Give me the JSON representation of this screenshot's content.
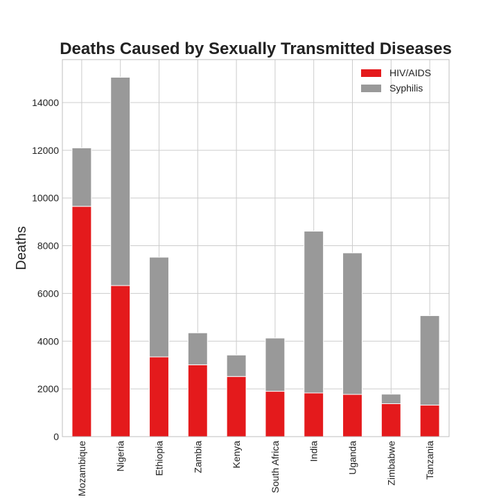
{
  "chart_data": {
    "type": "bar",
    "stacked": true,
    "title": "Deaths Caused by Sexually Transmitted Diseases",
    "xlabel": "",
    "ylabel": "Deaths",
    "categories": [
      "Mozambique",
      "Nigeria",
      "Ethiopia",
      "Zambia",
      "Kenya",
      "South Africa",
      "India",
      "Uganda",
      "Zimbabwe",
      "Tanzania"
    ],
    "series": [
      {
        "name": "HIV/AIDS",
        "color": "#e41a1c",
        "values": [
          9650,
          6330,
          3340,
          3010,
          2520,
          1900,
          1830,
          1770,
          1380,
          1320
        ]
      },
      {
        "name": "Syphilis",
        "color": "#999999",
        "values": [
          2450,
          8730,
          4180,
          1340,
          900,
          2230,
          6780,
          5930,
          400,
          3750
        ]
      }
    ],
    "ylim": [
      0,
      15800
    ],
    "yticks": [
      0,
      2000,
      4000,
      6000,
      8000,
      10000,
      12000,
      14000
    ],
    "grid": true,
    "legend_position": "top-right"
  }
}
